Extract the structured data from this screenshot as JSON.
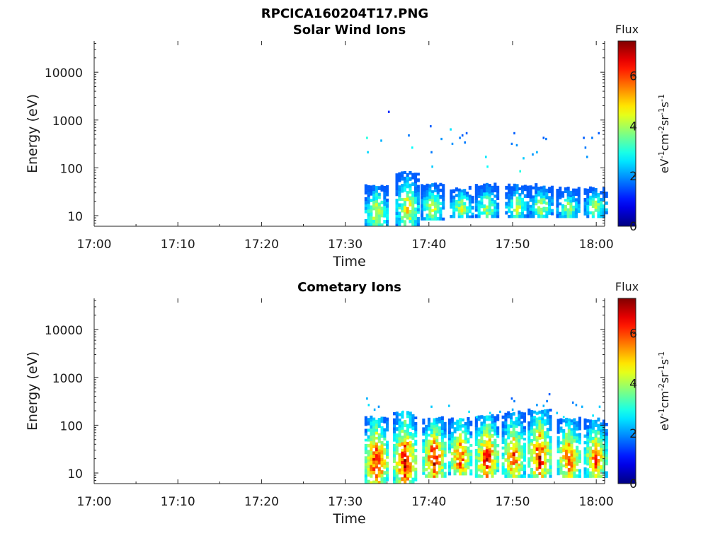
{
  "figure_title": "RPCICA160204T17.PNG",
  "chart_data": [
    {
      "type": "heatmap",
      "title": "Solar Wind Ions",
      "xlabel": "Time",
      "ylabel": "Energy (eV)",
      "x_ticks": [
        "17:00",
        "17:10",
        "17:20",
        "17:30",
        "17:40",
        "17:50",
        "18:00"
      ],
      "x_range_minutes": [
        0,
        61
      ],
      "y_scale": "log",
      "y_ticks": [
        "10",
        "100",
        "1000",
        "10000"
      ],
      "y_range": [
        6,
        45000
      ],
      "colorbar": {
        "label": "Flux",
        "unit_label": "eV-1cm-2sr-1s-1",
        "ticks": [
          "0",
          "2",
          "4",
          "6"
        ],
        "range": [
          0,
          7.4
        ]
      },
      "bursts": [
        {
          "t": 33.6,
          "e_low": 6,
          "e_high": 40,
          "peak": 4.8
        },
        {
          "t": 37.3,
          "e_low": 6,
          "e_high": 75,
          "peak": 4.8
        },
        {
          "t": 40.3,
          "e_low": 8,
          "e_high": 42,
          "peak": 4.5
        },
        {
          "t": 43.8,
          "e_low": 9,
          "e_high": 35,
          "peak": 4.4
        },
        {
          "t": 46.8,
          "e_low": 9,
          "e_high": 42,
          "peak": 4.2
        },
        {
          "t": 50.4,
          "e_low": 9,
          "e_high": 40,
          "peak": 4.2
        },
        {
          "t": 53.3,
          "e_low": 9,
          "e_high": 40,
          "peak": 4.4
        },
        {
          "t": 56.5,
          "e_low": 9,
          "e_high": 35,
          "peak": 4.0
        },
        {
          "t": 59.8,
          "e_low": 9,
          "e_high": 35,
          "peak": 4.2
        }
      ],
      "high_energy_points": [
        {
          "t": 32.5,
          "e": 400,
          "v": 3.0
        },
        {
          "t": 32.6,
          "e": 200,
          "v": 2.5
        },
        {
          "t": 34.2,
          "e": 350,
          "v": 2.2
        },
        {
          "t": 35.1,
          "e": 1400,
          "v": 1.2
        },
        {
          "t": 37.5,
          "e": 450,
          "v": 1.8
        },
        {
          "t": 37.9,
          "e": 250,
          "v": 2.8
        },
        {
          "t": 40.1,
          "e": 700,
          "v": 1.6
        },
        {
          "t": 40.2,
          "e": 200,
          "v": 1.8
        },
        {
          "t": 40.3,
          "e": 100,
          "v": 2.4
        },
        {
          "t": 41.4,
          "e": 380,
          "v": 2.0
        },
        {
          "t": 42.5,
          "e": 600,
          "v": 2.6
        },
        {
          "t": 42.7,
          "e": 300,
          "v": 2.0
        },
        {
          "t": 43.6,
          "e": 400,
          "v": 1.8
        },
        {
          "t": 43.9,
          "e": 450,
          "v": 1.6
        },
        {
          "t": 44.2,
          "e": 320,
          "v": 1.8
        },
        {
          "t": 44.4,
          "e": 500,
          "v": 1.6
        },
        {
          "t": 46.7,
          "e": 160,
          "v": 2.6
        },
        {
          "t": 46.9,
          "e": 100,
          "v": 2.8
        },
        {
          "t": 50.1,
          "e": 500,
          "v": 1.6
        },
        {
          "t": 49.8,
          "e": 300,
          "v": 1.8
        },
        {
          "t": 50.4,
          "e": 280,
          "v": 2.0
        },
        {
          "t": 50.8,
          "e": 80,
          "v": 3.0
        },
        {
          "t": 51.2,
          "e": 150,
          "v": 2.4
        },
        {
          "t": 52.3,
          "e": 180,
          "v": 2.0
        },
        {
          "t": 52.8,
          "e": 200,
          "v": 2.2
        },
        {
          "t": 53.6,
          "e": 400,
          "v": 1.6
        },
        {
          "t": 53.9,
          "e": 380,
          "v": 1.8
        },
        {
          "t": 58.4,
          "e": 400,
          "v": 1.6
        },
        {
          "t": 58.6,
          "e": 250,
          "v": 1.8
        },
        {
          "t": 58.8,
          "e": 160,
          "v": 2.0
        },
        {
          "t": 59.4,
          "e": 400,
          "v": 1.8
        },
        {
          "t": 60.2,
          "e": 500,
          "v": 1.6
        }
      ]
    },
    {
      "type": "heatmap",
      "title": "Cometary Ions",
      "xlabel": "Time",
      "ylabel": "Energy (eV)",
      "x_ticks": [
        "17:00",
        "17:10",
        "17:20",
        "17:30",
        "17:40",
        "17:50",
        "18:00"
      ],
      "x_range_minutes": [
        0,
        61
      ],
      "y_scale": "log",
      "y_ticks": [
        "10",
        "100",
        "1000",
        "10000"
      ],
      "y_range": [
        6,
        45000
      ],
      "colorbar": {
        "label": "Flux",
        "unit_label": "eV-1cm-2sr-1s-1",
        "ticks": [
          "0",
          "2",
          "4",
          "6"
        ],
        "range": [
          0,
          7.4
        ]
      },
      "bursts": [
        {
          "t": 33.6,
          "e_low": 6,
          "e_high": 140,
          "peak": 6.8
        },
        {
          "t": 37.0,
          "e_low": 6,
          "e_high": 170,
          "peak": 6.8
        },
        {
          "t": 40.5,
          "e_low": 8,
          "e_high": 130,
          "peak": 6.8
        },
        {
          "t": 43.6,
          "e_low": 9,
          "e_high": 130,
          "peak": 6.2
        },
        {
          "t": 46.8,
          "e_low": 8,
          "e_high": 150,
          "peak": 6.6
        },
        {
          "t": 50.0,
          "e_low": 8,
          "e_high": 170,
          "peak": 6.0
        },
        {
          "t": 53.1,
          "e_low": 8,
          "e_high": 200,
          "peak": 6.6
        },
        {
          "t": 56.6,
          "e_low": 8,
          "e_high": 130,
          "peak": 6.2
        },
        {
          "t": 59.8,
          "e_low": 8,
          "e_high": 130,
          "peak": 6.0
        }
      ],
      "high_energy_points": [
        {
          "t": 32.5,
          "e": 340,
          "v": 2.2
        },
        {
          "t": 32.7,
          "e": 250,
          "v": 2.6
        },
        {
          "t": 33.4,
          "e": 200,
          "v": 2.2
        },
        {
          "t": 33.9,
          "e": 230,
          "v": 2.0
        },
        {
          "t": 36.8,
          "e": 180,
          "v": 2.6
        },
        {
          "t": 40.2,
          "e": 230,
          "v": 2.4
        },
        {
          "t": 42.3,
          "e": 240,
          "v": 2.4
        },
        {
          "t": 44.7,
          "e": 180,
          "v": 2.6
        },
        {
          "t": 45.6,
          "e": 140,
          "v": 2.8
        },
        {
          "t": 47.2,
          "e": 170,
          "v": 2.6
        },
        {
          "t": 48.4,
          "e": 180,
          "v": 2.2
        },
        {
          "t": 49.8,
          "e": 340,
          "v": 1.6
        },
        {
          "t": 50.1,
          "e": 300,
          "v": 1.8
        },
        {
          "t": 49.9,
          "e": 200,
          "v": 2.2
        },
        {
          "t": 52.8,
          "e": 250,
          "v": 2.0
        },
        {
          "t": 53.6,
          "e": 240,
          "v": 2.2
        },
        {
          "t": 54.3,
          "e": 420,
          "v": 1.6
        },
        {
          "t": 54.0,
          "e": 300,
          "v": 1.8
        },
        {
          "t": 55.2,
          "e": 170,
          "v": 2.4
        },
        {
          "t": 56.0,
          "e": 140,
          "v": 2.6
        },
        {
          "t": 57.1,
          "e": 280,
          "v": 1.8
        },
        {
          "t": 57.5,
          "e": 250,
          "v": 2.0
        },
        {
          "t": 58.2,
          "e": 230,
          "v": 2.2
        },
        {
          "t": 60.3,
          "e": 230,
          "v": 2.4
        },
        {
          "t": 59.5,
          "e": 150,
          "v": 2.6
        }
      ]
    }
  ]
}
